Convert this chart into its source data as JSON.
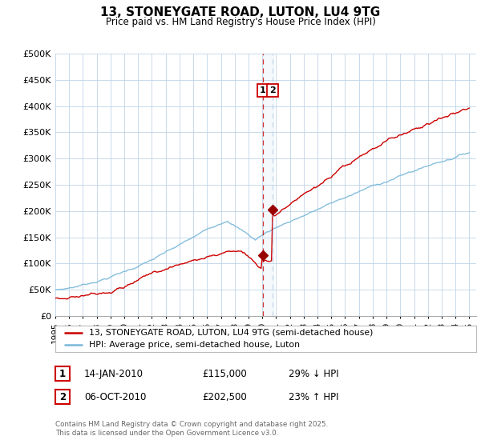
{
  "title": "13, STONEYGATE ROAD, LUTON, LU4 9TG",
  "subtitle": "Price paid vs. HM Land Registry's House Price Index (HPI)",
  "legend_line1": "13, STONEYGATE ROAD, LUTON, LU4 9TG (semi-detached house)",
  "legend_line2": "HPI: Average price, semi-detached house, Luton",
  "hpi_color": "#7ab8d9",
  "price_color": "#cc0000",
  "marker_color": "#990000",
  "vline_red_color": "#cc0000",
  "vline_blue_color": "#b0cfe8",
  "annotation_box_color": "#cc0000",
  "ylim": [
    0,
    500000
  ],
  "yticks": [
    0,
    50000,
    100000,
    150000,
    200000,
    250000,
    300000,
    350000,
    400000,
    450000,
    500000
  ],
  "ytick_labels": [
    "£0",
    "£50K",
    "£100K",
    "£150K",
    "£200K",
    "£250K",
    "£300K",
    "£350K",
    "£400K",
    "£450K",
    "£500K"
  ],
  "transaction1": {
    "date": "14-JAN-2010",
    "price": 115000,
    "price_str": "£115,000",
    "pct": "29%",
    "dir": "↓",
    "label": "1"
  },
  "transaction2": {
    "date": "06-OCT-2010",
    "price": 202500,
    "price_str": "£202,500",
    "pct": "23%",
    "dir": "↑",
    "label": "2"
  },
  "t1_year": 2010.04,
  "t2_year": 2010.75,
  "footer": "Contains HM Land Registry data © Crown copyright and database right 2025.\nThis data is licensed under the Open Government Licence v3.0.",
  "background_color": "#ffffff",
  "grid_color": "#c0d4e8"
}
